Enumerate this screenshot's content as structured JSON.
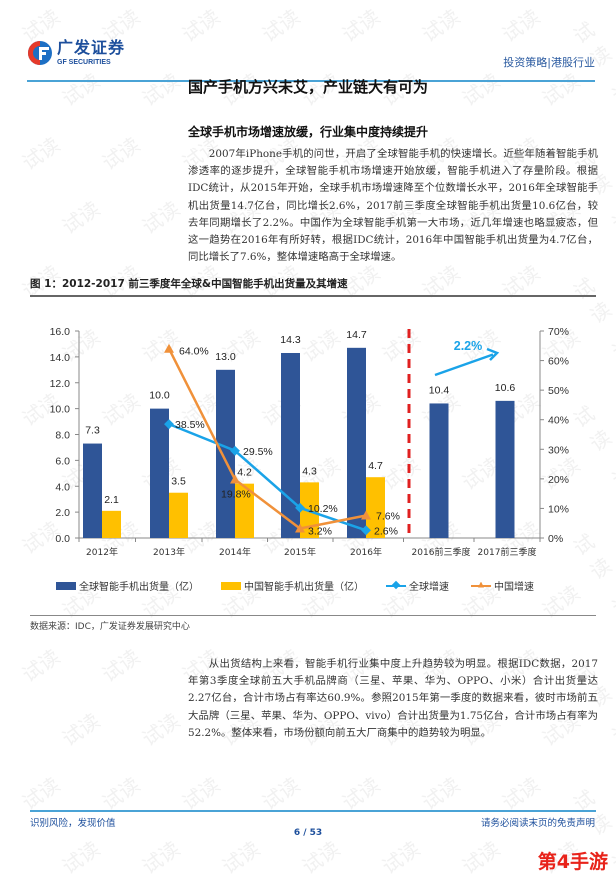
{
  "header": {
    "logo_cn": "广发证券",
    "logo_en": "GF SECURITIES",
    "category": "投资策略|港股行业"
  },
  "page_title": "国产手机方兴未艾，产业链大有可为",
  "section": {
    "heading": "全球手机市场增速放缓，行业集中度持续提升",
    "paragraph1": "2007年iPhone手机的问世，开启了全球智能手机的快速增长。近些年随着智能手机渗透率的逐步提升，全球智能手机市场增速开始放缓，智能手机进入了存量阶段。根据IDC统计，从2015年开始，全球手机市场增速降至个位数增长水平，2016年全球智能手机出货量14.7亿台，同比增长2.6%，2017前三季度全球智能手机出货量10.6亿台，较去年同期增长了2.2%。中国作为全球智能手机第一大市场，近几年增速也略显疲态，但这一趋势在2016年有所好转，根据IDC统计，2016年中国智能手机出货量为4.7亿台，同比增长了7.6%，整体增速略高于全球增速。",
    "paragraph2": "从出货结构上来看，智能手机行业集中度上升趋势较为明显。根据IDC数据，2017年第3季度全球前五大手机品牌商（三星、苹果、华为、OPPO、小米）合计出货量达2.27亿台，合计市场占有率达60.9%。参照2015年第一季度的数据来看，彼时市场前五大品牌（三星、苹果、华为、OPPO、vivo）合计出货量为1.75亿台，合计市场占有率为52.2%。整体来看，市场份额向前五大厂商集中的趋势较为明显。"
  },
  "figure": {
    "caption": "图 1：2012-2017 前三季度年全球&中国智能手机出货量及其增速",
    "source": "数据来源：IDC，广发证券发展研究中心"
  },
  "chart_data": {
    "type": "bar",
    "title": "2012-2017 前三季度年全球&中国智能手机出货量及其增速",
    "categories": [
      "2012年",
      "2013年",
      "2014年",
      "2015年",
      "2016年",
      "2016前三季度",
      "2017前三季度"
    ],
    "series": [
      {
        "name": "全球智能手机出货量（亿）",
        "type": "bar",
        "axis": "left",
        "color": "#2f5597",
        "values": [
          7.3,
          10.0,
          13.0,
          14.3,
          14.7,
          10.4,
          10.6
        ]
      },
      {
        "name": "中国智能手机出货量（亿）",
        "type": "bar",
        "axis": "left",
        "color": "#ffc000",
        "values": [
          2.1,
          3.5,
          4.2,
          4.3,
          4.7,
          null,
          null
        ]
      },
      {
        "name": "全球增速",
        "type": "line",
        "axis": "right",
        "color": "#1aa3e8",
        "marker": "diamond",
        "values": [
          null,
          38.5,
          29.5,
          10.2,
          2.6,
          null,
          null
        ],
        "labels": [
          "",
          "38.5%",
          "29.5%",
          "10.2%",
          "2.6%",
          "",
          ""
        ]
      },
      {
        "name": "中国增速",
        "type": "line",
        "axis": "right",
        "color": "#f0913a",
        "marker": "triangle",
        "values": [
          null,
          64.0,
          19.8,
          3.2,
          7.6,
          null,
          null
        ],
        "labels": [
          "",
          "64.0%",
          "19.8%",
          "3.2%",
          "7.6%",
          "",
          ""
        ]
      }
    ],
    "bar_labels": {
      "global": [
        "7.3",
        "10.0",
        "13.0",
        "14.3",
        "14.7",
        "10.4",
        "10.6"
      ],
      "china": [
        "2.1",
        "3.5",
        "4.2",
        "4.3",
        "4.7",
        "",
        ""
      ]
    },
    "left_axis": {
      "ylim": [
        0,
        16
      ],
      "ticks": [
        "0.0",
        "2.0",
        "4.0",
        "6.0",
        "8.0",
        "10.0",
        "12.0",
        "14.0",
        "16.0"
      ]
    },
    "right_axis": {
      "ylim": [
        0,
        70
      ],
      "ticks": [
        "0%",
        "10%",
        "20%",
        "30%",
        "40%",
        "50%",
        "60%",
        "70%"
      ]
    },
    "annotations": [
      {
        "text": "2.2%",
        "type": "arrow",
        "color": "#1aa3e8",
        "note": "2017前三季度同比增速"
      },
      {
        "type": "dashed-divider",
        "color": "#e02020",
        "position": "between 2016年 and 2016前三季度"
      }
    ],
    "legend_position": "bottom",
    "grid": false,
    "xlabel": "",
    "ylabel": ""
  },
  "legend": {
    "items": [
      {
        "label": "全球智能手机出货量（亿）",
        "color": "#2f5597",
        "kind": "bar"
      },
      {
        "label": "中国智能手机出货量（亿）",
        "color": "#ffc000",
        "kind": "bar"
      },
      {
        "label": "全球增速",
        "color": "#1aa3e8",
        "kind": "line-diamond"
      },
      {
        "label": "中国增速",
        "color": "#f0913a",
        "kind": "line-triangle"
      }
    ]
  },
  "footer": {
    "left": "识别风险，发现价值",
    "right": "请务必阅读末页的免责声明",
    "page": "6 / 53"
  },
  "badge": "第4手游",
  "watermark": "试读",
  "colors": {
    "brand_blue": "#1d4f9c",
    "rule_blue": "#4aa3d6",
    "bar_global": "#2f5597",
    "bar_china": "#ffc000",
    "line_global": "#1aa3e8",
    "line_china": "#f0913a",
    "divider_red": "#e02020",
    "badge_red": "#e8231a"
  }
}
